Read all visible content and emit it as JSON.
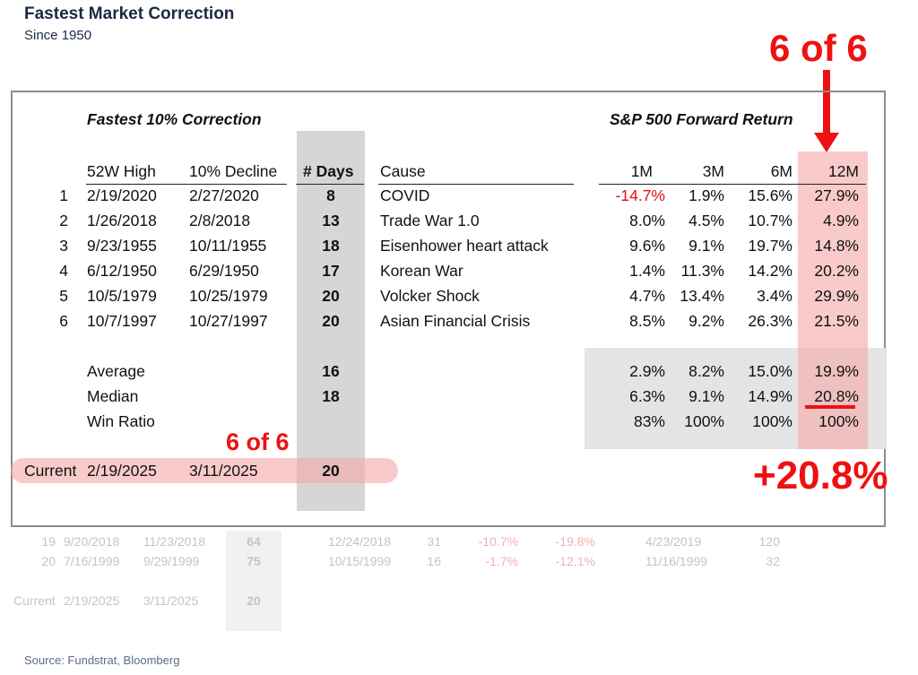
{
  "title": "Fastest Market Correction",
  "subtitle": "Since 1950",
  "annotation_top": "6 of 6",
  "annotation_mid": "6 of 6",
  "annotation_big": "+20.8%",
  "section_left": "Fastest 10% Correction",
  "section_right": "S&P 500 Forward Return",
  "columns": {
    "high": "52W High",
    "decline": "10% Decline",
    "days": "# Days",
    "cause": "Cause",
    "m1": "1M",
    "m3": "3M",
    "m6": "6M",
    "m12": "12M"
  },
  "rows": [
    {
      "rank": "1",
      "high": "2/19/2020",
      "decline": "2/27/2020",
      "days": "8",
      "cause": "COVID",
      "m1": "-14.7%",
      "m3": "1.9%",
      "m6": "15.6%",
      "m12": "27.9%"
    },
    {
      "rank": "2",
      "high": "1/26/2018",
      "decline": "2/8/2018",
      "days": "13",
      "cause": "Trade War 1.0",
      "m1": "8.0%",
      "m3": "4.5%",
      "m6": "10.7%",
      "m12": "4.9%"
    },
    {
      "rank": "3",
      "high": "9/23/1955",
      "decline": "10/11/1955",
      "days": "18",
      "cause": "Eisenhower heart attack",
      "m1": "9.6%",
      "m3": "9.1%",
      "m6": "19.7%",
      "m12": "14.8%"
    },
    {
      "rank": "4",
      "high": "6/12/1950",
      "decline": "6/29/1950",
      "days": "17",
      "cause": "Korean War",
      "m1": "1.4%",
      "m3": "11.3%",
      "m6": "14.2%",
      "m12": "20.2%"
    },
    {
      "rank": "5",
      "high": "10/5/1979",
      "decline": "10/25/1979",
      "days": "20",
      "cause": "Volcker Shock",
      "m1": "4.7%",
      "m3": "13.4%",
      "m6": "3.4%",
      "m12": "29.9%"
    },
    {
      "rank": "6",
      "high": "10/7/1997",
      "decline": "10/27/1997",
      "days": "20",
      "cause": "Asian Financial Crisis",
      "m1": "8.5%",
      "m3": "9.2%",
      "m6": "26.3%",
      "m12": "21.5%"
    }
  ],
  "stats": [
    {
      "label": "Average",
      "days": "16",
      "m1": "2.9%",
      "m3": "8.2%",
      "m6": "15.0%",
      "m12": "19.9%"
    },
    {
      "label": "Median",
      "days": "18",
      "m1": "6.3%",
      "m3": "9.1%",
      "m6": "14.9%",
      "m12": "20.8%"
    },
    {
      "label": "Win Ratio",
      "days": "",
      "m1": "83%",
      "m3": "100%",
      "m6": "100%",
      "m12": "100%"
    }
  ],
  "current": {
    "label": "Current",
    "high": "2/19/2025",
    "decline": "3/11/2025",
    "days": "20"
  },
  "faded_rows": [
    {
      "rank": "19",
      "high": "9/20/2018",
      "decline": "11/23/2018",
      "days": "64",
      "trough": "12/24/2018",
      "trough_days": "31",
      "pct1": "-10.7%",
      "pct2": "-19.8%",
      "recovery": "4/23/2019",
      "recovery_days": "120"
    },
    {
      "rank": "20",
      "high": "7/16/1999",
      "decline": "9/29/1999",
      "days": "75",
      "trough": "10/15/1999",
      "trough_days": "16",
      "pct1": "-1.7%",
      "pct2": "-12.1%",
      "recovery": "11/16/1999",
      "recovery_days": "32"
    }
  ],
  "faded_current": {
    "label": "Current",
    "high": "2/19/2025",
    "decline": "3/11/2025",
    "days": "20"
  },
  "source": "Source: Fundstrat, Bloomberg",
  "colors": {
    "accent_red": "#ee1111",
    "highlight_pink": "#f6aaaa",
    "title_navy": "#1b2a44",
    "frame_gray": "#8c8c8c"
  }
}
